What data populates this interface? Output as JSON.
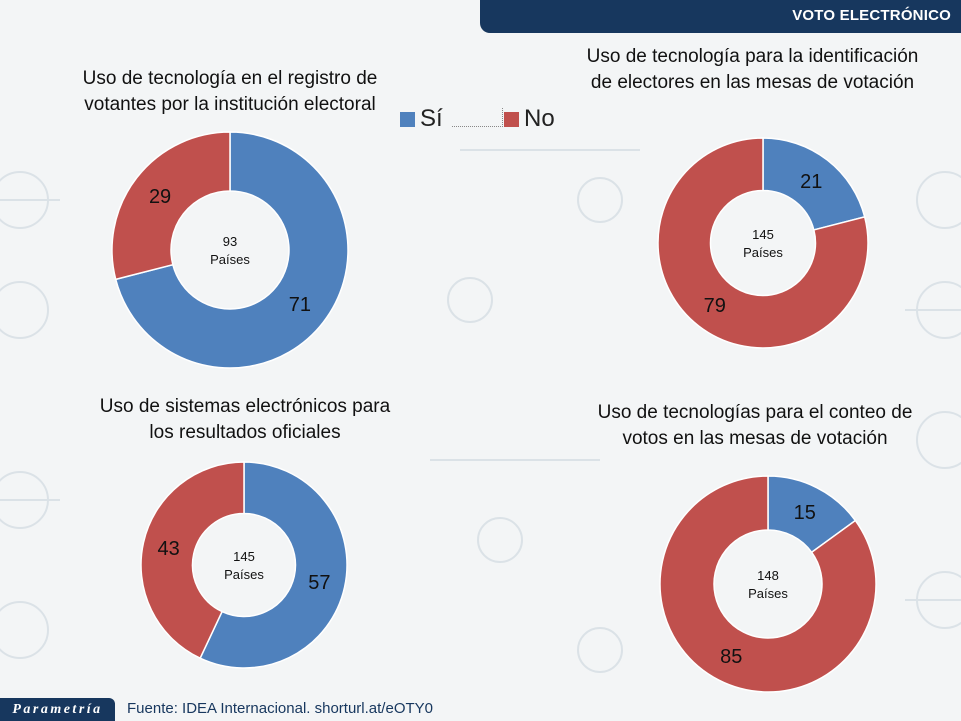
{
  "header": {
    "title": "VOTO ELECTRÓNICO"
  },
  "legend": {
    "yes": "Sí",
    "no": "No"
  },
  "colors": {
    "yes": "#4f81bd",
    "no": "#c0504d",
    "header": "#17375e"
  },
  "footer": {
    "logo": "Parametría",
    "source": "Fuente: IDEA Internacional. shorturl.at/eOTY0"
  },
  "chart_data": [
    {
      "type": "donut",
      "title": "Uso de tecnología en el registro de votantes por la institución electoral",
      "title_lines": [
        "Uso de tecnología en el registro de",
        "votantes por la institución electoral"
      ],
      "center_value": "93",
      "center_unit": "Países",
      "slices": [
        {
          "name": "Sí",
          "value": 71,
          "label": "71"
        },
        {
          "name": "No",
          "value": 29,
          "label": "29"
        }
      ]
    },
    {
      "type": "donut",
      "title": "Uso de tecnología para la identificación de electores en las mesas de votación",
      "title_lines": [
        "Uso de tecnología para la identificación",
        "de electores en las mesas de votación"
      ],
      "center_value": "145",
      "center_unit": "Países",
      "slices": [
        {
          "name": "Sí",
          "value": 21,
          "label": "21"
        },
        {
          "name": "No",
          "value": 79,
          "label": "79"
        }
      ]
    },
    {
      "type": "donut",
      "title": "Uso de sistemas electrónicos para los resultados oficiales",
      "title_lines": [
        "Uso de sistemas electrónicos para",
        "los resultados oficiales"
      ],
      "center_value": "145",
      "center_unit": "Países",
      "slices": [
        {
          "name": "Sí",
          "value": 57,
          "label": "57"
        },
        {
          "name": "No",
          "value": 43,
          "label": "43"
        }
      ]
    },
    {
      "type": "donut",
      "title": "Uso de tecnologías para el conteo de votos en las mesas de votación",
      "title_lines": [
        "Uso de tecnologías para el conteo de",
        "votos en las mesas de votación"
      ],
      "center_value": "148",
      "center_unit": "Países",
      "slices": [
        {
          "name": "Sí",
          "value": 15,
          "label": "15"
        },
        {
          "name": "No",
          "value": 85,
          "label": "85"
        }
      ]
    }
  ]
}
